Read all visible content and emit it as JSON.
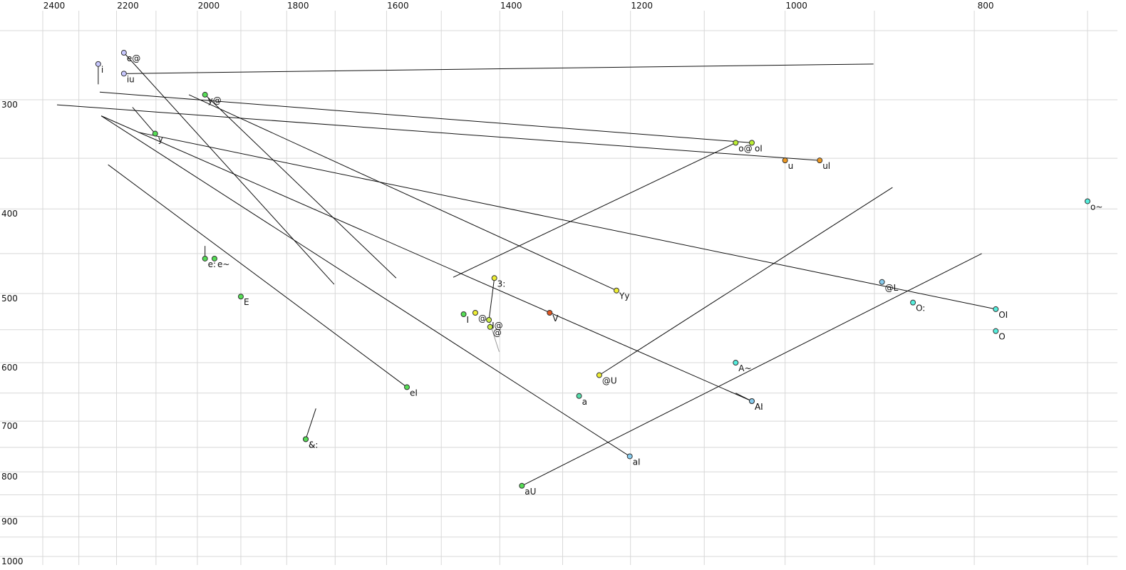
{
  "chart_data": {
    "type": "scatter",
    "log_x": true,
    "log_y": true,
    "x_reversed": true,
    "xlim": [
      2400,
      700
    ],
    "ylim": [
      250,
      1000
    ],
    "xticks": [
      2400,
      2200,
      2000,
      1800,
      1600,
      1400,
      1200,
      1000,
      800
    ],
    "xgrid": [
      2400,
      2300,
      2200,
      2100,
      2000,
      1900,
      1800,
      1700,
      1600,
      1500,
      1400,
      1300,
      1200,
      1100,
      1000,
      900,
      800,
      700
    ],
    "yticks": [
      300,
      400,
      500,
      600,
      700,
      800,
      900,
      1000
    ],
    "ygrid": [
      250,
      300,
      350,
      400,
      450,
      500,
      550,
      600,
      650,
      700,
      750,
      800,
      850,
      900,
      950,
      1000
    ],
    "points": [
      {
        "label": "i",
        "x": 2248,
        "y": 273,
        "color": "#c8c8ff",
        "to": [
          2248,
          288
        ]
      },
      {
        "label": "e@",
        "x": 2181,
        "y": 265,
        "color": "#c8c8ff",
        "to": [
          1702,
          488
        ]
      },
      {
        "label": "iu",
        "x": 2181,
        "y": 280,
        "color": "#c8c8ff",
        "to": [
          901,
          273
        ]
      },
      {
        "label": "y@",
        "x": 1982,
        "y": 296,
        "color": "#55dd55",
        "to": [
          1582,
          480
        ]
      },
      {
        "label": "y",
        "x": 2102,
        "y": 328,
        "color": "#55dd55",
        "to": [
          2159,
          306
        ]
      },
      {
        "label": "e:",
        "x": 1982,
        "y": 456,
        "color": "#55dd55",
        "to": [
          1982,
          441
        ]
      },
      {
        "label": "e~",
        "x": 1960,
        "y": 456,
        "color": "#55dd55"
      },
      {
        "label": "E",
        "x": 1900,
        "y": 504,
        "color": "#55dd55"
      },
      {
        "label": "eI",
        "x": 1562,
        "y": 640,
        "color": "#55dd55",
        "to": [
          2222,
          356
        ]
      },
      {
        "label": "&:",
        "x": 1760,
        "y": 734,
        "color": "#55dd55"
      },
      {
        "label": "&",
        "x": 1760,
        "y": 734,
        "color": "#55dd55",
        "to": [
          1739,
          677
        ]
      },
      {
        "label": "I",
        "x": 1461,
        "y": 528,
        "color": "#55dd55"
      },
      {
        "label": "@",
        "x": 1441,
        "y": 526,
        "color": "#eeee33"
      },
      {
        "label": "3:",
        "x": 1409,
        "y": 480,
        "color": "#eeee33",
        "to": [
          1418,
          536
        ]
      },
      {
        "label": "@",
        "x": 1416,
        "y": 546,
        "color": "#ccee44"
      },
      {
        "label": "I@",
        "x": 1418,
        "y": 536,
        "color": "#ccee44",
        "to": [
          1401,
          583
        ],
        "line_color": "#999999"
      },
      {
        "label": "V",
        "x": 1320,
        "y": 526,
        "color": "#e05520"
      },
      {
        "label": "Yy",
        "x": 1220,
        "y": 496,
        "color": "#eeee33",
        "to": [
          2020,
          296
        ]
      },
      {
        "label": "@U",
        "x": 1245,
        "y": 620,
        "color": "#eeee33",
        "to": [
          881,
          378
        ]
      },
      {
        "label": "a",
        "x": 1275,
        "y": 655,
        "color": "#55ddaa"
      },
      {
        "label": "aI",
        "x": 1201,
        "y": 768,
        "color": "#88ccee",
        "to": [
          2240,
          313
        ]
      },
      {
        "label": "aU",
        "x": 1364,
        "y": 830,
        "color": "#55dd55",
        "to": [
          793,
          450
        ]
      },
      {
        "label": "A~",
        "x": 1060,
        "y": 600,
        "color": "#55eedd"
      },
      {
        "label": "A:",
        "x": 1040,
        "y": 664,
        "color": "#88ccee",
        "to": [
          2240,
          313
        ]
      },
      {
        "label": "AI",
        "x": 1040,
        "y": 664,
        "color": "#88ccee",
        "to": [
          1060,
          650
        ]
      },
      {
        "label": "@L",
        "x": 892,
        "y": 485,
        "color": "#88ccee"
      },
      {
        "label": "O:",
        "x": 860,
        "y": 512,
        "color": "#55eedd"
      },
      {
        "label": "OI",
        "x": 780,
        "y": 521,
        "color": "#55eedd",
        "to": [
          2142,
          327
        ]
      },
      {
        "label": "O",
        "x": 780,
        "y": 552,
        "color": "#55eedd"
      },
      {
        "label": "o~",
        "x": 700,
        "y": 392,
        "color": "#55eedd"
      },
      {
        "label": "o@",
        "x": 1060,
        "y": 336,
        "color": "#bbee33",
        "to": [
          1479,
          479
        ]
      },
      {
        "label": "oI",
        "x": 1040,
        "y": 336,
        "color": "#bbee33",
        "to": [
          2244,
          294
        ]
      },
      {
        "label": "u",
        "x": 1000,
        "y": 352,
        "color": "#ee9922"
      },
      {
        "label": "ul",
        "x": 960,
        "y": 352,
        "color": "#ee9922",
        "to": [
          2360,
          304
        ]
      }
    ]
  }
}
